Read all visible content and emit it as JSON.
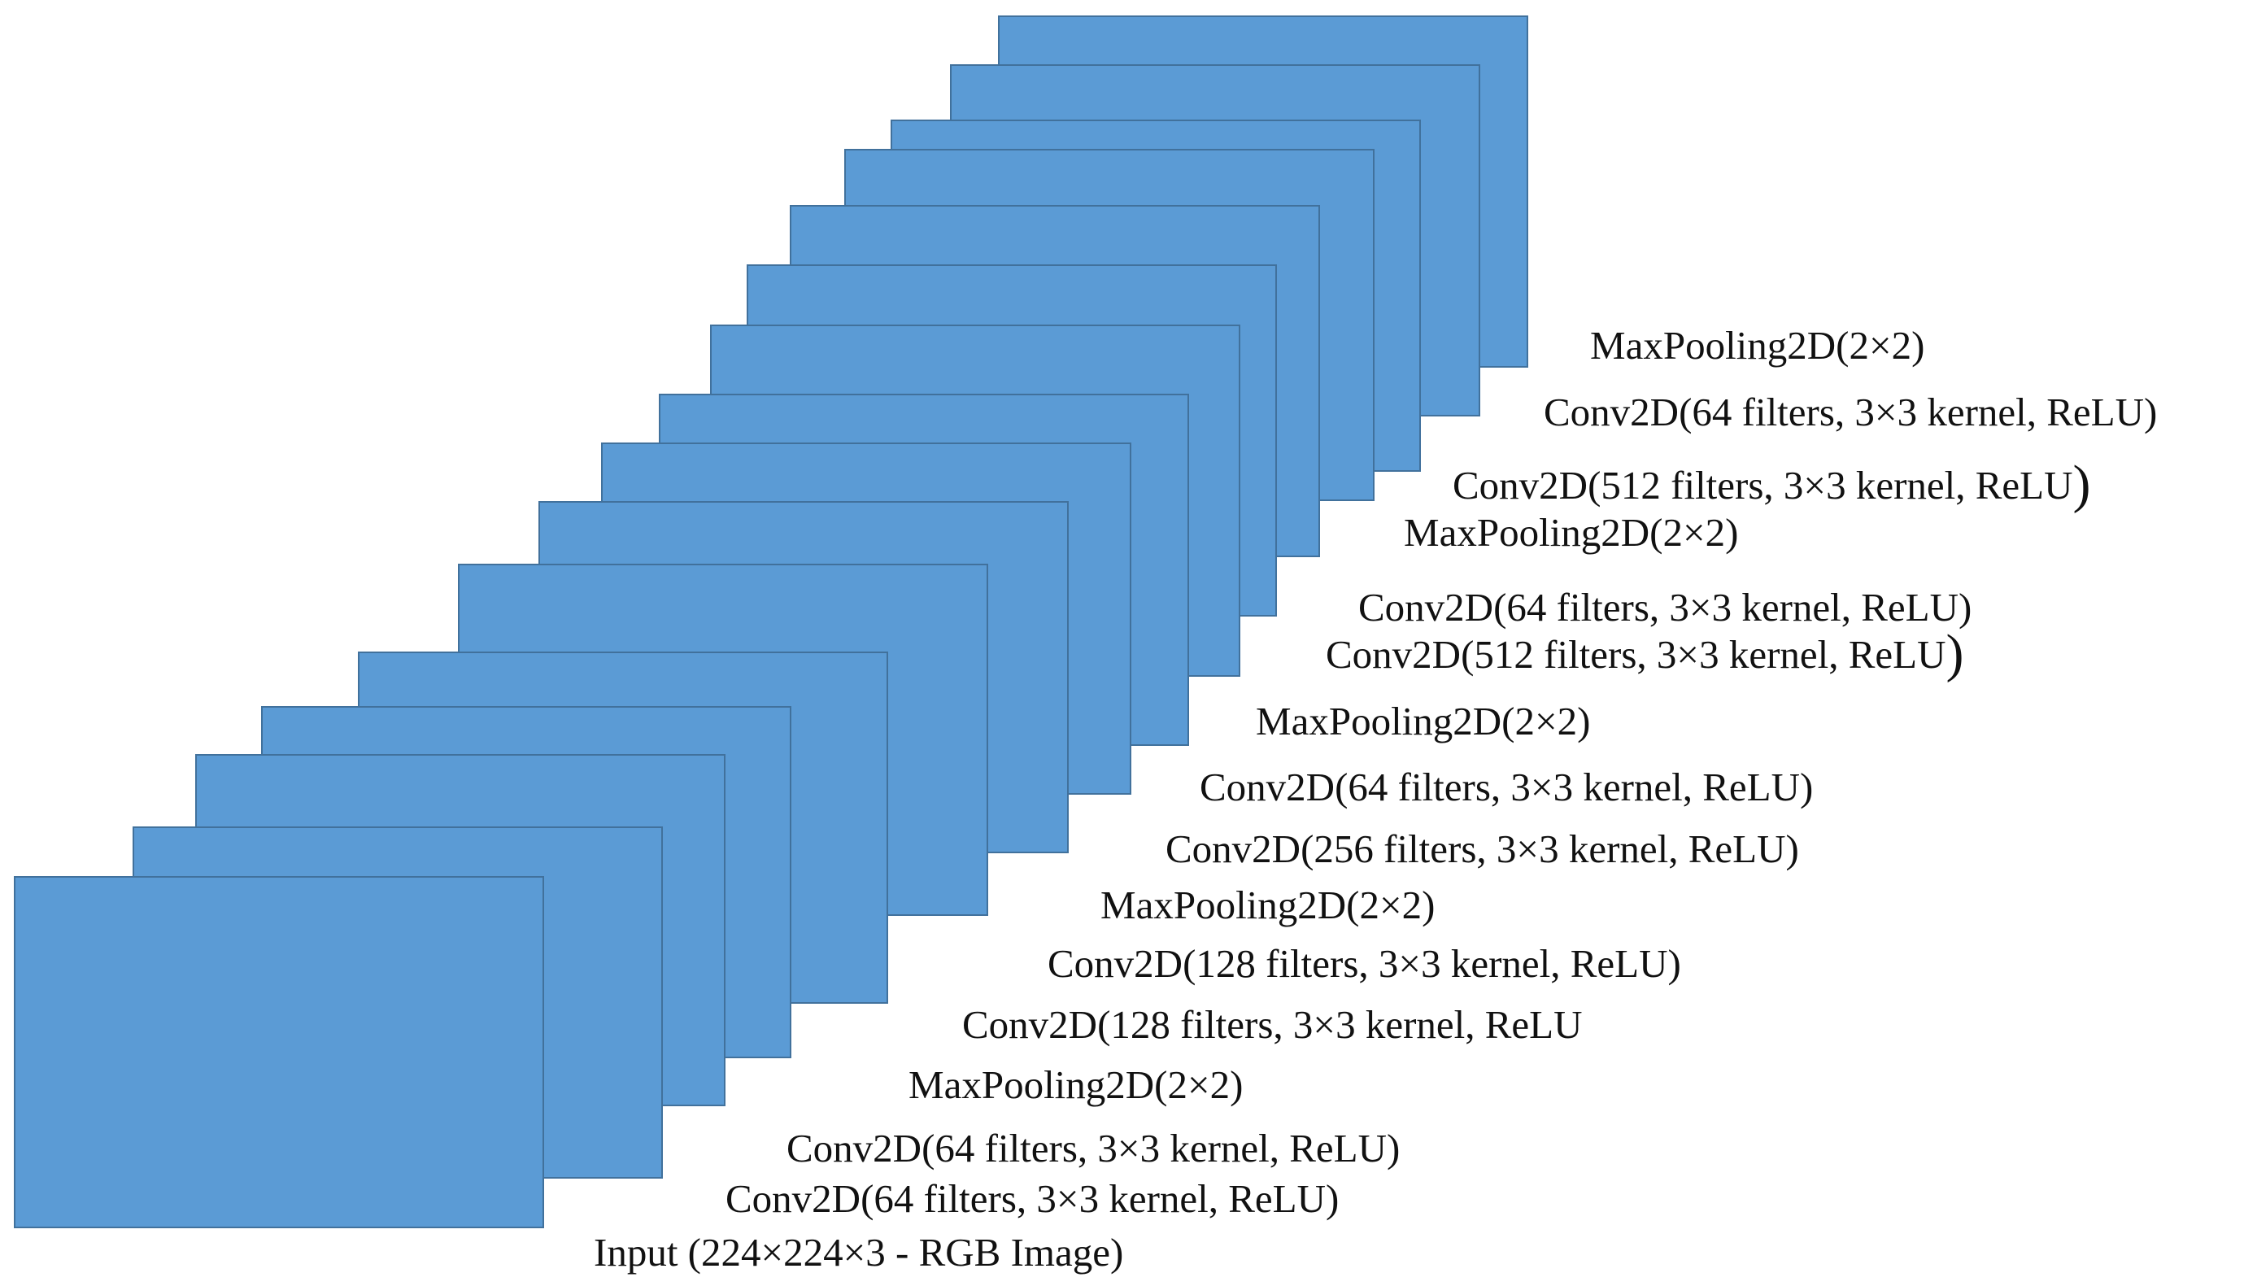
{
  "diagram": {
    "layers": [
      {
        "label": "MaxPooling2D(2×2)"
      },
      {
        "label": "Conv2D(64 filters, 3×3 kernel, ReLU)"
      },
      {
        "label": "Conv2D(512 filters, 3×3 kernel, ReLU",
        "suffix": ")"
      },
      {
        "label": "MaxPooling2D(2×2)"
      },
      {
        "label": "Conv2D(64 filters, 3×3 kernel, ReLU)"
      },
      {
        "label": "Conv2D(512 filters, 3×3 kernel, ReLU",
        "suffix": ")"
      },
      {
        "label": "MaxPooling2D(2×2)"
      },
      {
        "label": "Conv2D(64 filters, 3×3 kernel, ReLU)"
      },
      {
        "label": "Conv2D(256 filters, 3×3 kernel, ReLU)"
      },
      {
        "label": "MaxPooling2D(2×2)"
      },
      {
        "label": "Conv2D(128 filters, 3×3 kernel, ReLU)"
      },
      {
        "label": "Conv2D(128 filters, 3×3 kernel, ReLU"
      },
      {
        "label": "MaxPooling2D(2×2)"
      },
      {
        "label": "Conv2D(64 filters, 3×3 kernel, ReLU)"
      },
      {
        "label": "Conv2D(64 filters, 3×3 kernel, ReLU)"
      },
      {
        "label": "Input (224×224×3 - RGB Image)"
      }
    ],
    "colors": {
      "layer_fill": "#5b9bd5",
      "layer_border": "#41719c",
      "text": "#111111"
    }
  }
}
